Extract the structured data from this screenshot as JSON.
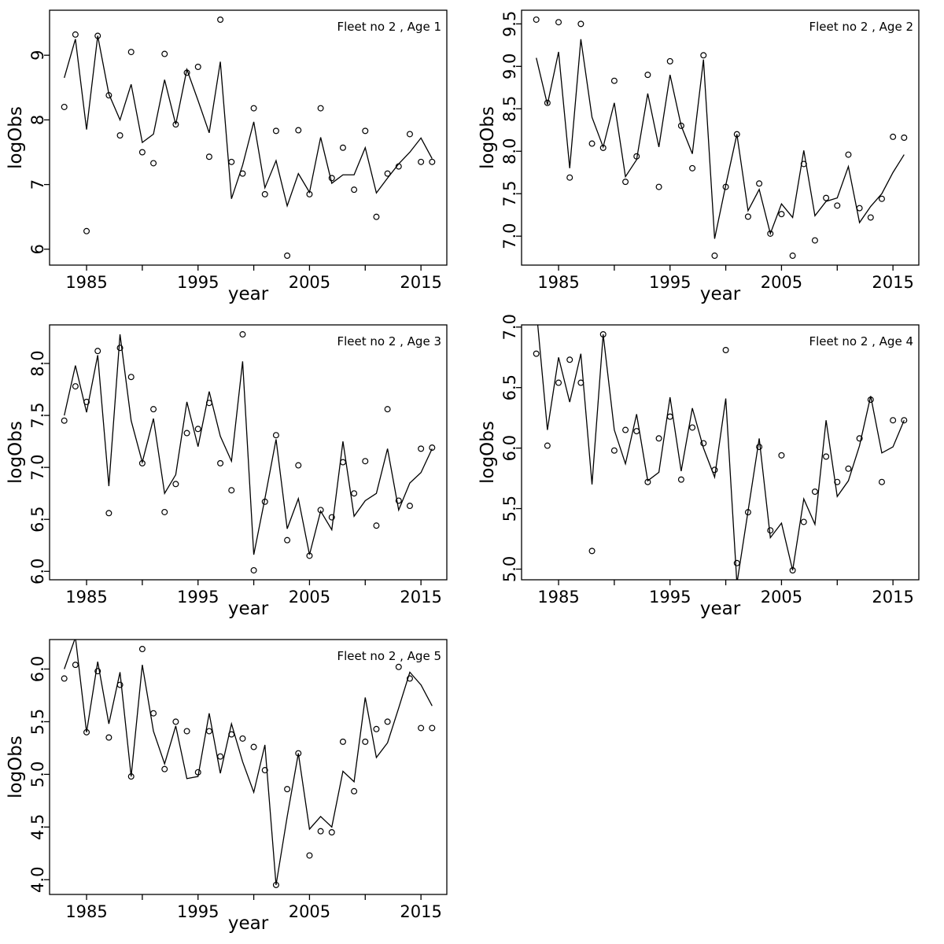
{
  "page": {
    "background": "#ffffff",
    "foreground": "#000000"
  },
  "chart_data": [
    {
      "type": "line",
      "title": "Fleet no 2 , Age 1",
      "xlabel": "year",
      "ylabel": "logObs",
      "x": [
        1983,
        1984,
        1985,
        1986,
        1987,
        1988,
        1989,
        1990,
        1991,
        1992,
        1993,
        1994,
        1995,
        1996,
        1997,
        1998,
        1999,
        2000,
        2001,
        2002,
        2003,
        2004,
        2005,
        2006,
        2007,
        2008,
        2009,
        2010,
        2011,
        2012,
        2013,
        2014,
        2015,
        2016
      ],
      "series": [
        {
          "name": "observed",
          "style": "points",
          "marker": "open-circle",
          "values": [
            8.2,
            9.32,
            6.28,
            9.3,
            8.38,
            7.76,
            9.05,
            7.5,
            7.33,
            9.02,
            7.93,
            8.73,
            8.82,
            7.43,
            9.55,
            7.35,
            7.17,
            8.18,
            6.85,
            7.83,
            5.9,
            7.84,
            6.85,
            8.18,
            7.1,
            7.57,
            6.92,
            7.83,
            6.5,
            7.17,
            7.28,
            7.78,
            7.35,
            7.35
          ]
        },
        {
          "name": "fitted",
          "style": "line",
          "values": [
            8.65,
            9.25,
            7.85,
            9.3,
            8.4,
            8.0,
            8.55,
            7.65,
            7.78,
            8.62,
            7.93,
            8.78,
            8.3,
            7.8,
            8.9,
            6.78,
            7.3,
            7.97,
            6.95,
            7.37,
            6.67,
            7.17,
            6.88,
            7.73,
            7.02,
            7.15,
            7.15,
            7.57,
            6.87,
            7.1,
            7.32,
            7.5,
            7.72,
            7.4
          ]
        }
      ],
      "xlim": [
        1981.68,
        2017.32
      ],
      "ylim": [
        5.754,
        9.696
      ],
      "xtick_values": [
        1985,
        1990,
        1995,
        2000,
        2005,
        2010,
        2015
      ],
      "xtick_labels": [
        "1985",
        "",
        "1995",
        "",
        "2005",
        "",
        "2015"
      ],
      "ytick_values": [
        6,
        7,
        8,
        9
      ],
      "ytick_labels": [
        "6",
        "7",
        "8",
        "9"
      ],
      "grid": false,
      "legend": "none"
    },
    {
      "type": "line",
      "title": "Fleet no 2 , Age 2",
      "xlabel": "year",
      "ylabel": "logObs",
      "x": [
        1983,
        1984,
        1985,
        1986,
        1987,
        1988,
        1989,
        1990,
        1991,
        1992,
        1993,
        1994,
        1995,
        1996,
        1997,
        1998,
        1999,
        2000,
        2001,
        2002,
        2003,
        2004,
        2005,
        2006,
        2007,
        2008,
        2009,
        2010,
        2011,
        2012,
        2013,
        2014,
        2015,
        2016
      ],
      "series": [
        {
          "name": "observed",
          "style": "points",
          "marker": "open-circle",
          "values": [
            9.55,
            8.57,
            9.52,
            7.69,
            9.5,
            8.09,
            8.04,
            8.83,
            7.64,
            7.94,
            8.9,
            7.58,
            9.06,
            8.3,
            7.8,
            9.13,
            6.77,
            7.58,
            8.2,
            7.23,
            7.62,
            7.03,
            7.26,
            6.77,
            7.85,
            6.95,
            7.45,
            7.36,
            7.96,
            7.33,
            7.22,
            7.44,
            8.17,
            8.16
          ]
        },
        {
          "name": "fitted",
          "style": "line",
          "values": [
            9.1,
            8.55,
            9.17,
            7.8,
            9.32,
            8.4,
            8.05,
            8.57,
            7.7,
            7.9,
            8.68,
            8.05,
            8.9,
            8.3,
            7.97,
            9.08,
            6.97,
            7.6,
            8.2,
            7.3,
            7.55,
            7.03,
            7.38,
            7.22,
            8.01,
            7.24,
            7.41,
            7.45,
            7.82,
            7.16,
            7.35,
            7.5,
            7.75,
            7.96
          ]
        }
      ],
      "xlim": [
        1981.68,
        2017.32
      ],
      "ylim": [
        6.659,
        9.661
      ],
      "xtick_values": [
        1985,
        1990,
        1995,
        2000,
        2005,
        2010,
        2015
      ],
      "xtick_labels": [
        "1985",
        "",
        "1995",
        "",
        "2005",
        "",
        "2015"
      ],
      "ytick_values": [
        7.0,
        7.5,
        8.0,
        8.5,
        9.0,
        9.5
      ],
      "ytick_labels": [
        "7.0",
        "7.5",
        "8.0",
        "8.5",
        "9.0",
        "9.5"
      ],
      "grid": false,
      "legend": "none"
    },
    {
      "type": "line",
      "title": "Fleet no 2 , Age 3",
      "xlabel": "year",
      "ylabel": "logObs",
      "x": [
        1983,
        1984,
        1985,
        1986,
        1987,
        1988,
        1989,
        1990,
        1991,
        1992,
        1993,
        1994,
        1995,
        1996,
        1997,
        1998,
        1999,
        2000,
        2001,
        2002,
        2003,
        2004,
        2005,
        2006,
        2007,
        2008,
        2009,
        2010,
        2011,
        2012,
        2013,
        2014,
        2015,
        2016
      ],
      "series": [
        {
          "name": "observed",
          "style": "points",
          "marker": "open-circle",
          "values": [
            7.45,
            7.78,
            7.63,
            8.12,
            6.56,
            8.15,
            7.87,
            7.04,
            7.56,
            6.57,
            6.84,
            7.33,
            7.37,
            7.62,
            7.04,
            6.78,
            8.28,
            6.01,
            6.67,
            7.31,
            6.3,
            7.02,
            6.15,
            6.59,
            6.52,
            7.05,
            6.75,
            7.06,
            6.44,
            7.56,
            6.68,
            6.63,
            7.18,
            7.19
          ]
        },
        {
          "name": "fitted",
          "style": "line",
          "values": [
            7.5,
            7.98,
            7.53,
            8.08,
            6.82,
            8.28,
            7.45,
            7.05,
            7.47,
            6.75,
            6.93,
            7.63,
            7.2,
            7.73,
            7.3,
            7.06,
            8.02,
            6.16,
            6.7,
            7.27,
            6.41,
            6.7,
            6.16,
            6.58,
            6.4,
            7.25,
            6.53,
            6.68,
            6.75,
            7.18,
            6.59,
            6.85,
            6.95,
            7.18
          ]
        }
      ],
      "xlim": [
        1981.68,
        2017.32
      ],
      "ylim": [
        5.919,
        8.371
      ],
      "xtick_values": [
        1985,
        1990,
        1995,
        2000,
        2005,
        2010,
        2015
      ],
      "xtick_labels": [
        "1985",
        "",
        "1995",
        "",
        "2005",
        "",
        "2015"
      ],
      "ytick_values": [
        6.0,
        6.5,
        7.0,
        7.5,
        8.0
      ],
      "ytick_labels": [
        "6.0",
        "6.5",
        "7.0",
        "7.5",
        "8.0"
      ],
      "grid": false,
      "legend": "none"
    },
    {
      "type": "line",
      "title": "Fleet no 2 , Age 4",
      "xlabel": "year",
      "ylabel": "logObs",
      "x": [
        1983,
        1984,
        1985,
        1986,
        1987,
        1988,
        1989,
        1990,
        1991,
        1992,
        1993,
        1994,
        1995,
        1996,
        1997,
        1998,
        1999,
        2000,
        2001,
        2002,
        2003,
        2004,
        2005,
        2006,
        2007,
        2008,
        2009,
        2010,
        2011,
        2012,
        2013,
        2014,
        2015,
        2016
      ],
      "series": [
        {
          "name": "observed",
          "style": "points",
          "marker": "open-circle",
          "values": [
            6.78,
            6.02,
            6.54,
            6.73,
            6.54,
            5.15,
            6.94,
            5.98,
            6.15,
            6.14,
            5.72,
            6.08,
            6.26,
            5.74,
            6.17,
            6.04,
            5.82,
            6.81,
            5.05,
            5.47,
            6.01,
            5.32,
            5.94,
            4.99,
            5.39,
            5.64,
            5.93,
            5.72,
            5.83,
            6.08,
            6.4,
            5.72,
            6.23,
            6.23
          ]
        },
        {
          "name": "fitted",
          "style": "line",
          "values": [
            7.15,
            6.15,
            6.75,
            6.38,
            6.78,
            5.7,
            6.94,
            6.15,
            5.87,
            6.28,
            5.73,
            5.8,
            6.42,
            5.81,
            6.33,
            6.0,
            5.76,
            6.41,
            4.88,
            5.48,
            6.08,
            5.26,
            5.38,
            4.99,
            5.58,
            5.37,
            6.23,
            5.6,
            5.73,
            6.02,
            6.43,
            5.96,
            6.01,
            6.23
          ]
        }
      ],
      "xlim": [
        1981.68,
        2017.32
      ],
      "ylim": [
        4.912,
        7.018
      ],
      "xtick_values": [
        1985,
        1990,
        1995,
        2000,
        2005,
        2010,
        2015
      ],
      "xtick_labels": [
        "1985",
        "",
        "1995",
        "",
        "2005",
        "",
        "2015"
      ],
      "ytick_values": [
        5.0,
        5.5,
        6.0,
        6.5,
        7.0
      ],
      "ytick_labels": [
        "5.0",
        "5.5",
        "6.0",
        "6.5",
        "7.0"
      ],
      "grid": false,
      "legend": "none"
    },
    {
      "type": "line",
      "title": "Fleet no 2 , Age 5",
      "xlabel": "year",
      "ylabel": "logObs",
      "x": [
        1983,
        1984,
        1985,
        1986,
        1987,
        1988,
        1989,
        1990,
        1991,
        1992,
        1993,
        1994,
        1995,
        1996,
        1997,
        1998,
        1999,
        2000,
        2001,
        2002,
        2003,
        2004,
        2005,
        2006,
        2007,
        2008,
        2009,
        2010,
        2011,
        2012,
        2013,
        2014,
        2015,
        2016
      ],
      "series": [
        {
          "name": "observed",
          "style": "points",
          "marker": "open-circle",
          "values": [
            5.91,
            6.04,
            5.4,
            5.98,
            5.35,
            5.85,
            4.98,
            6.19,
            5.58,
            5.05,
            5.5,
            5.41,
            5.02,
            5.41,
            5.17,
            5.38,
            5.34,
            5.26,
            5.04,
            3.95,
            4.86,
            5.2,
            4.23,
            4.46,
            4.45,
            5.31,
            4.84,
            5.31,
            5.43,
            5.5,
            6.02,
            5.91,
            5.44,
            5.44
          ]
        },
        {
          "name": "fitted",
          "style": "line",
          "values": [
            6.0,
            6.3,
            5.4,
            6.07,
            5.48,
            5.97,
            4.98,
            6.04,
            5.41,
            5.1,
            5.46,
            4.96,
            4.98,
            5.58,
            5.01,
            5.48,
            5.12,
            4.83,
            5.28,
            3.95,
            4.6,
            5.2,
            4.48,
            4.6,
            4.5,
            5.03,
            4.93,
            5.73,
            5.16,
            5.3,
            5.63,
            5.97,
            5.85,
            5.65
          ]
        }
      ],
      "xlim": [
        1981.68,
        2017.32
      ],
      "ylim": [
        3.86,
        6.28
      ],
      "xtick_values": [
        1985,
        1990,
        1995,
        2000,
        2005,
        2010,
        2015
      ],
      "xtick_labels": [
        "1985",
        "",
        "1995",
        "",
        "2005",
        "",
        "2015"
      ],
      "ytick_values": [
        4.0,
        4.5,
        5.0,
        5.5,
        6.0
      ],
      "ytick_labels": [
        "4.0",
        "4.5",
        "5.0",
        "5.5",
        "6.0"
      ],
      "grid": false,
      "legend": "none"
    }
  ]
}
